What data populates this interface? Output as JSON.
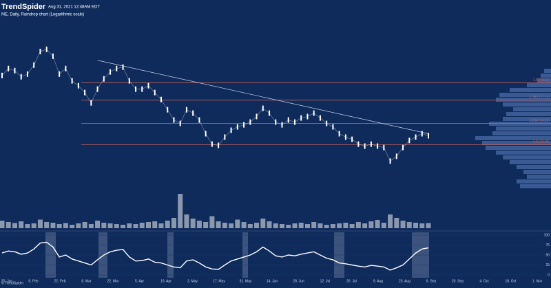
{
  "header": {
    "brand": "TrendSpider",
    "timestamp": "Aug 31, 2021 12:48AM EDT",
    "subtitle": "ME, Daily, Raindrop chart (Logarithmic scale)",
    "footer": "© TrendSpider"
  },
  "time_axis": {
    "labels": [
      "25. Jan",
      "8. Feb",
      "22. Feb",
      "8. Mar",
      "22. Mar",
      "5. Apr",
      "19. Apr",
      "3. May",
      "17. May",
      "31. May",
      "14. Jun",
      "28. Jun",
      "12. Jul",
      "26. Jul",
      "9. Aug",
      "23. Aug",
      "6. Sep",
      "20. Sep",
      "4. Oct",
      "18. Oct",
      "1. Nov"
    ]
  },
  "chart_data": [
    {
      "type": "line",
      "log_scale": true,
      "color": "#ffffff",
      "ylim": [
        9.7,
        28.8
      ],
      "values": [
        20.8,
        21.97,
        21.61,
        20.59,
        21.03,
        22.58,
        25.15,
        25.58,
        24.22,
        21.03,
        21.97,
        19.93,
        19.18,
        18.17,
        16.74,
        18.67,
        20.25,
        21.39,
        21.97,
        22.22,
        19.93,
        18.67,
        18.67,
        19.18,
        18.17,
        17.2,
        15.86,
        14.62,
        14.23,
        15.86,
        15.44,
        14.62,
        13.12,
        12.08,
        11.96,
        12.77,
        13.48,
        13.85,
        14.07,
        14.38,
        15.03,
        16.04,
        15.44,
        14.38,
        14.07,
        14.62,
        14.38,
        14.86,
        15.03,
        15.44,
        14.86,
        14.23,
        13.85,
        13.12,
        12.77,
        12.55,
        12.08,
        11.89,
        12.08,
        11.89,
        11.76,
        10.56,
        10.97,
        11.76,
        12.43,
        12.77,
        13.12,
        12.91
      ],
      "levels": [
        {
          "value": 19.62,
          "label": "1.5 (19.62)"
        },
        {
          "value": 17.11,
          "label": "1.382 (17.11)"
        },
        {
          "value": 14.23,
          "label": "1.236 (14.23)"
        },
        {
          "value": 12.02,
          "label": "1.0 (12.02)"
        }
      ],
      "level_color": "#c0605a",
      "trendline": {
        "color": "#c9d3e6",
        "start_index": 15,
        "start_value": 23.45,
        "end_index": 67,
        "end_value": 13.12
      },
      "volume_profile": {
        "color": "#3a5a94",
        "values": [
          10,
          15,
          20,
          35,
          60,
          75,
          80,
          70,
          55,
          65,
          70,
          90,
          80,
          85,
          110,
          100,
          95,
          80,
          70,
          60,
          50,
          40,
          35,
          50,
          45
        ]
      }
    },
    {
      "type": "bar",
      "color": "#8a97ad",
      "ylim": [
        0,
        100
      ],
      "values": [
        22,
        18,
        15,
        20,
        12,
        14,
        25,
        18,
        16,
        12,
        15,
        10,
        14,
        18,
        12,
        22,
        16,
        14,
        12,
        10,
        14,
        12,
        16,
        18,
        20,
        14,
        22,
        30,
        100,
        40,
        28,
        22,
        18,
        35,
        20,
        16,
        14,
        25,
        18,
        12,
        16,
        28,
        20,
        14,
        12,
        10,
        14,
        16,
        12,
        18,
        14,
        10,
        12,
        14,
        16,
        12,
        18,
        14,
        20,
        24,
        16,
        40,
        30,
        22,
        18,
        16,
        14,
        15
      ]
    },
    {
      "type": "line",
      "color": "#ffffff",
      "ylim": [
        0,
        100
      ],
      "yticks": [
        0,
        25,
        50,
        75,
        100
      ],
      "values": [
        55,
        60,
        58,
        52,
        55,
        65,
        80,
        82,
        70,
        45,
        50,
        40,
        35,
        30,
        25,
        38,
        50,
        58,
        62,
        64,
        45,
        35,
        36,
        40,
        32,
        30,
        25,
        20,
        18,
        35,
        38,
        30,
        20,
        15,
        14,
        25,
        35,
        40,
        45,
        50,
        58,
        70,
        60,
        48,
        45,
        50,
        48,
        52,
        55,
        58,
        50,
        42,
        38,
        30,
        28,
        25,
        22,
        20,
        24,
        22,
        20,
        12,
        18,
        25,
        40,
        55,
        65,
        68
      ]
    }
  ]
}
